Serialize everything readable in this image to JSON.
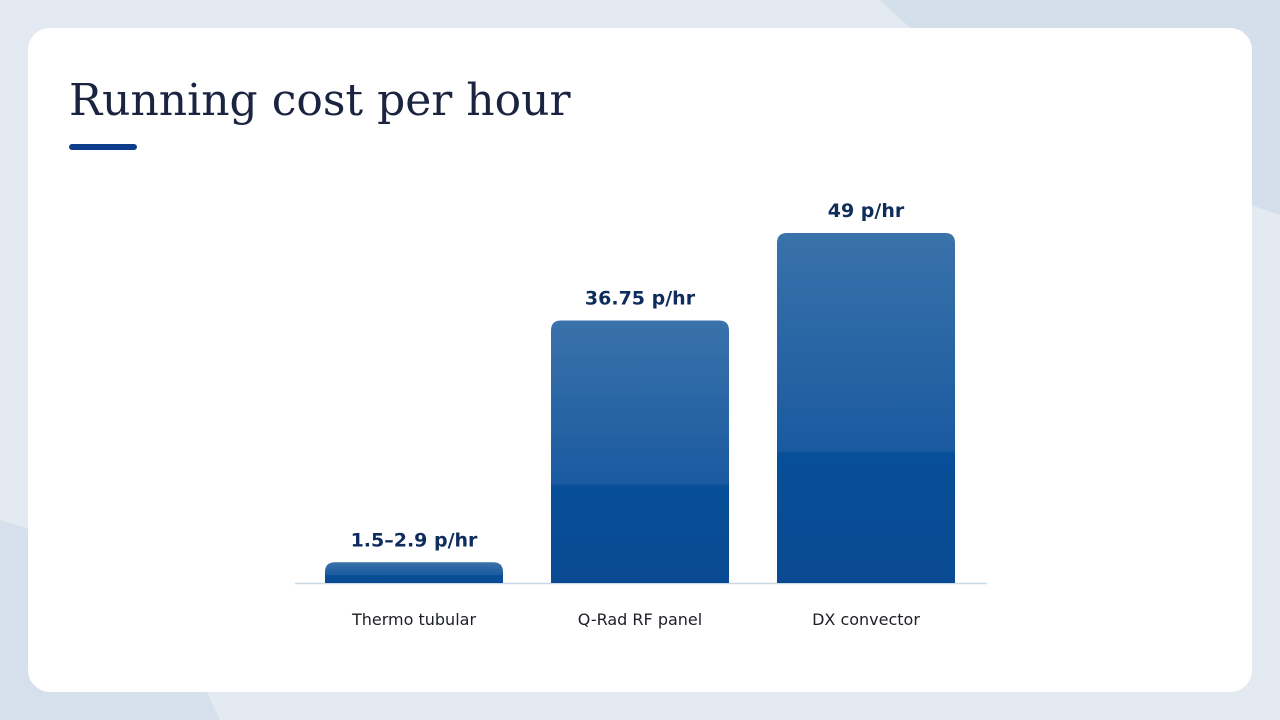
{
  "chart_data": {
    "type": "bar",
    "title": "Running cost per hour",
    "categories": [
      "Thermo tubular",
      "Q-Rad RF panel",
      "DX convector"
    ],
    "values": [
      2.9,
      36.75,
      49
    ],
    "value_labels": [
      "1.5–2.9 p/hr",
      "36.75 p/hr",
      "49 p/hr"
    ],
    "color": "#0e4f98"
  }
}
